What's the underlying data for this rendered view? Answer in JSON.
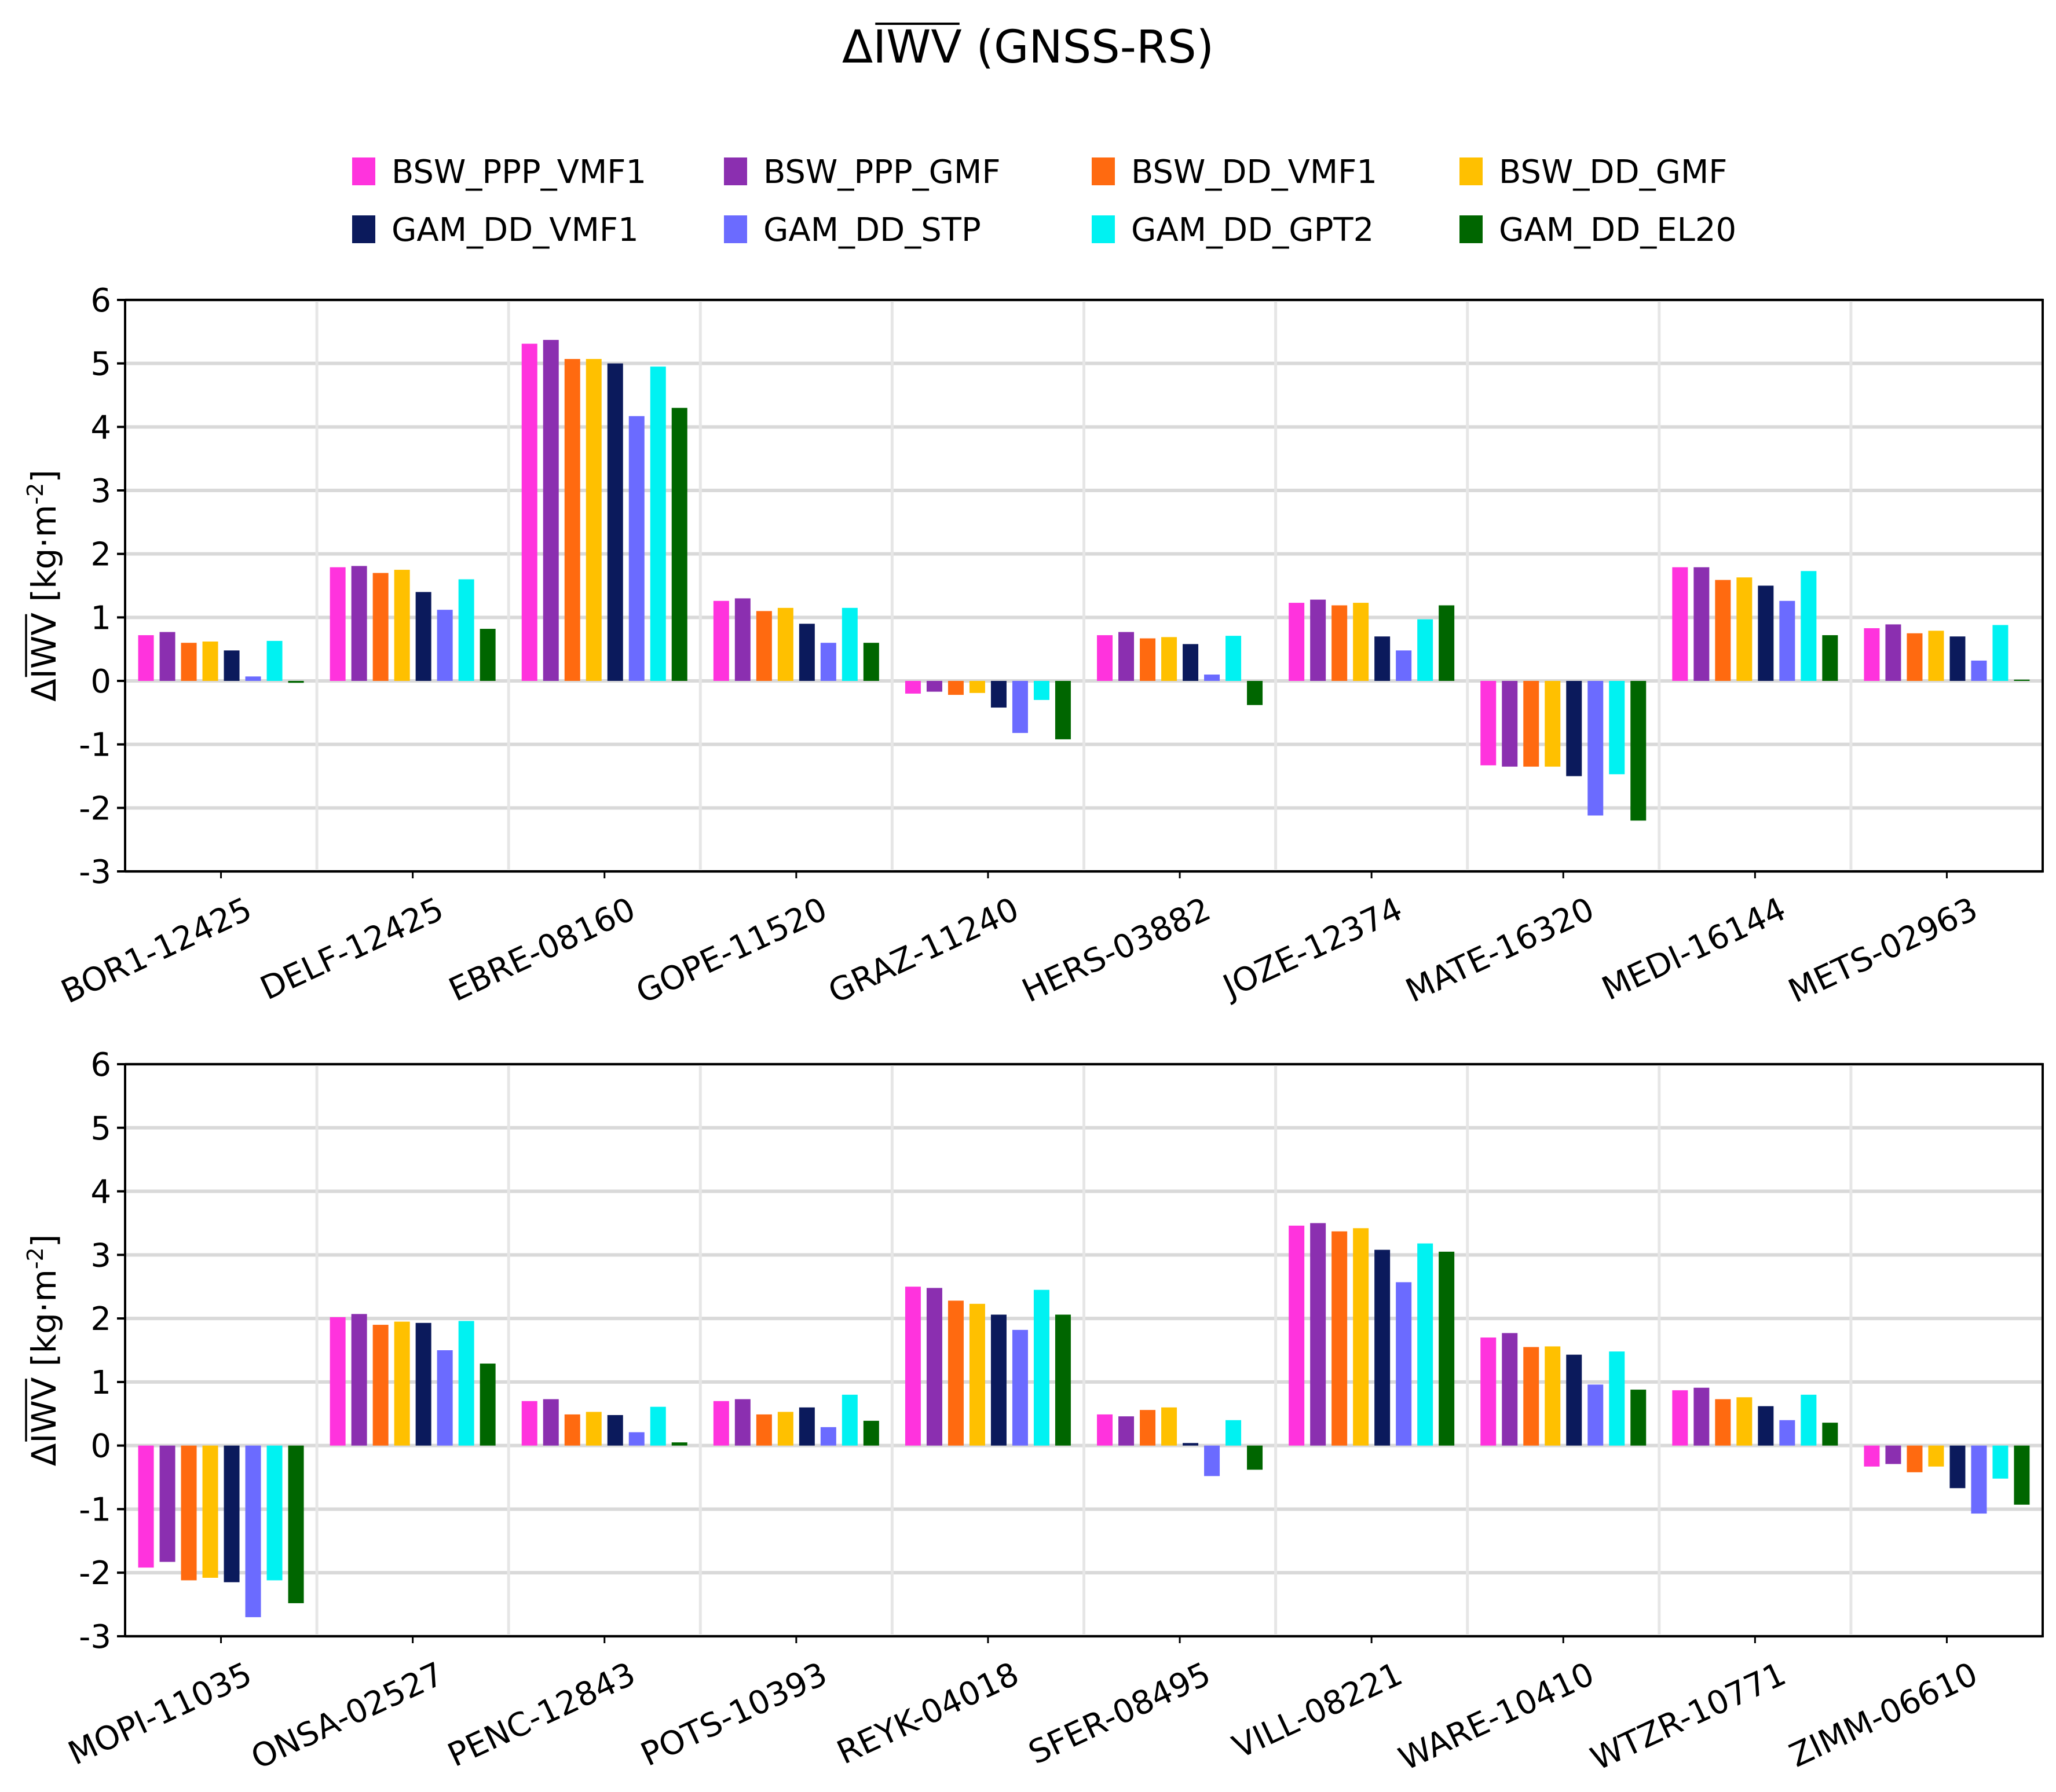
{
  "title": {
    "prefix": "Δ",
    "symbol": "IWV",
    "suffix": " (GNSS-RS)"
  },
  "colors": {
    "BSW_PPP_VMF1": "#ff33dd",
    "BSW_PPP_GMF": "#8b2fb0",
    "BSW_DD_VMF1": "#ff6a10",
    "BSW_DD_GMF": "#ffc000",
    "GAM_DD_VMF1": "#0b1a5c",
    "GAM_DD_STP": "#6b6bff",
    "GAM_DD_GPT2": "#00f2f2",
    "GAM_DD_EL20": "#006600"
  },
  "legend": {
    "position": "top-center",
    "rows": [
      [
        "BSW_PPP_VMF1",
        "BSW_PPP_GMF",
        "BSW_DD_VMF1",
        "BSW_DD_GMF"
      ],
      [
        "GAM_DD_VMF1",
        "GAM_DD_STP",
        "GAM_DD_GPT2",
        "GAM_DD_EL20"
      ]
    ]
  },
  "chart_data": [
    {
      "type": "bar",
      "title": "ΔIWV (GNSS-RS)",
      "xlabel": "",
      "ylabel": {
        "prefix": "Δ",
        "symbol": "IWV",
        "unit_base": " [kg·m",
        "unit_exp": "-2",
        "unit_close": "]"
      },
      "ylim": [
        -3,
        6
      ],
      "yticks": [
        -3,
        -2,
        -1,
        0,
        1,
        2,
        3,
        4,
        5,
        6
      ],
      "grid": true,
      "categories": [
        "BOR1-12425",
        "DELF-12425",
        "EBRE-08160",
        "GOPE-11520",
        "GRAZ-11240",
        "HERS-03882",
        "JOZE-12374",
        "MATE-16320",
        "MEDI-16144",
        "METS-02963"
      ],
      "series": [
        {
          "name": "BSW_PPP_VMF1",
          "values": [
            0.72,
            1.79,
            5.31,
            1.26,
            -0.2,
            0.72,
            1.23,
            -1.33,
            1.79,
            0.83
          ]
        },
        {
          "name": "BSW_PPP_GMF",
          "values": [
            0.77,
            1.81,
            5.37,
            1.3,
            -0.17,
            0.77,
            1.28,
            -1.35,
            1.79,
            0.89
          ]
        },
        {
          "name": "BSW_DD_VMF1",
          "values": [
            0.6,
            1.7,
            5.07,
            1.1,
            -0.22,
            0.67,
            1.19,
            -1.35,
            1.59,
            0.75
          ]
        },
        {
          "name": "BSW_DD_GMF",
          "values": [
            0.62,
            1.75,
            5.07,
            1.15,
            -0.19,
            0.69,
            1.23,
            -1.35,
            1.63,
            0.79
          ]
        },
        {
          "name": "GAM_DD_VMF1",
          "values": [
            0.48,
            1.4,
            5.0,
            0.9,
            -0.42,
            0.58,
            0.7,
            -1.5,
            1.5,
            0.7
          ]
        },
        {
          "name": "GAM_DD_STP",
          "values": [
            0.07,
            1.12,
            4.17,
            0.6,
            -0.82,
            0.1,
            0.48,
            -2.12,
            1.26,
            0.32
          ]
        },
        {
          "name": "GAM_DD_GPT2",
          "values": [
            0.63,
            1.6,
            4.95,
            1.15,
            -0.3,
            0.71,
            0.97,
            -1.47,
            1.73,
            0.88
          ]
        },
        {
          "name": "GAM_DD_EL20",
          "values": [
            -0.03,
            0.82,
            4.3,
            0.6,
            -0.92,
            -0.38,
            1.19,
            -2.2,
            0.72,
            0.02
          ]
        }
      ]
    },
    {
      "type": "bar",
      "title": "",
      "xlabel": "",
      "ylabel": {
        "prefix": "Δ",
        "symbol": "IWV",
        "unit_base": " [kg·m",
        "unit_exp": "-2",
        "unit_close": "]"
      },
      "ylim": [
        -3,
        6
      ],
      "yticks": [
        -3,
        -2,
        -1,
        0,
        1,
        2,
        3,
        4,
        5,
        6
      ],
      "grid": true,
      "categories": [
        "MOPI-11035",
        "ONSA-02527",
        "PENC-12843",
        "POTS-10393",
        "REYK-04018",
        "SFER-08495",
        "VILL-08221",
        "WARE-10410",
        "WTZR-10771",
        "ZIMM-06610"
      ],
      "series": [
        {
          "name": "BSW_PPP_VMF1",
          "values": [
            -1.92,
            2.02,
            0.7,
            0.7,
            2.5,
            0.49,
            3.46,
            1.7,
            0.87,
            -0.33
          ]
        },
        {
          "name": "BSW_PPP_GMF",
          "values": [
            -1.83,
            2.07,
            0.73,
            0.73,
            2.48,
            0.46,
            3.5,
            1.77,
            0.91,
            -0.29
          ]
        },
        {
          "name": "BSW_DD_VMF1",
          "values": [
            -2.12,
            1.9,
            0.49,
            0.49,
            2.28,
            0.56,
            3.37,
            1.55,
            0.73,
            -0.42
          ]
        },
        {
          "name": "BSW_DD_GMF",
          "values": [
            -2.08,
            1.95,
            0.53,
            0.53,
            2.23,
            0.6,
            3.42,
            1.56,
            0.76,
            -0.33
          ]
        },
        {
          "name": "GAM_DD_VMF1",
          "values": [
            -2.15,
            1.93,
            0.48,
            0.6,
            2.06,
            0.04,
            3.08,
            1.43,
            0.62,
            -0.67
          ]
        },
        {
          "name": "GAM_DD_STP",
          "values": [
            -2.7,
            1.5,
            0.21,
            0.29,
            1.82,
            -0.48,
            2.57,
            0.96,
            0.4,
            -1.07
          ]
        },
        {
          "name": "GAM_DD_GPT2",
          "values": [
            -2.12,
            1.96,
            0.61,
            0.8,
            2.45,
            0.4,
            3.18,
            1.48,
            0.8,
            -0.52
          ]
        },
        {
          "name": "GAM_DD_EL20",
          "values": [
            -2.48,
            1.29,
            0.05,
            0.39,
            2.06,
            -0.38,
            3.05,
            0.88,
            0.36,
            -0.93
          ]
        }
      ]
    }
  ]
}
